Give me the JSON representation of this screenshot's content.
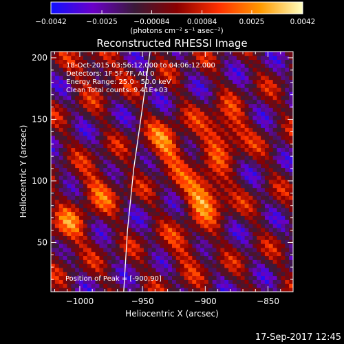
{
  "chart_data": {
    "type": "heatmap",
    "title": "Reconstructed RHESSI Image",
    "xlabel": "Heliocentric X (arcsec)",
    "ylabel": "Heliocentric Y (arcsec)",
    "xlim": [
      -1023,
      -830
    ],
    "ylim": [
      10,
      205
    ],
    "x_ticks": [
      -1000,
      -950,
      -900,
      -850
    ],
    "x_tick_labels": [
      "−1000",
      "−950",
      "−900",
      "−850"
    ],
    "y_ticks": [
      50,
      100,
      150,
      200
    ],
    "y_tick_labels": [
      "50",
      "100",
      "150",
      "200"
    ],
    "colorbar": {
      "min": -0.0042,
      "max": 0.0042,
      "ticks": [
        -0.0042,
        -0.0025,
        -0.00084,
        0.00084,
        0.0025,
        0.0042
      ],
      "tick_labels": [
        "−0.0042",
        "−0.0025",
        "−0.00084",
        "0.00084",
        "0.0025",
        "0.0042"
      ],
      "units_label": "(photons cm⁻² s⁻¹ asec⁻²)",
      "colors": [
        "#1010ff",
        "#6a00c8",
        "#3a1a38",
        "#8a0000",
        "#ff3000",
        "#ff9a00",
        "#ffffc0"
      ]
    },
    "info_lines": [
      "18-Oct-2015 03:56:12.000 to 04:06:12.000",
      "Detectors: 1F 5F 7F, Att 0",
      "Energy Range: 25.0 - 50.0 keV",
      "Clean   Total counts: 9.41E+03"
    ],
    "peak_label": "Position of Peak = [-900,90]",
    "peak_position": [
      -900,
      90
    ],
    "sources": [
      {
        "x": -900,
        "y": 90,
        "amplitude": 0.0042
      },
      {
        "x": -930,
        "y": 128,
        "amplitude": 0.003
      },
      {
        "x": -885,
        "y": 140,
        "amplitude": 0.0033
      },
      {
        "x": -1010,
        "y": 60,
        "amplitude": 0.0024
      },
      {
        "x": -985,
        "y": 95,
        "amplitude": 0.0022
      },
      {
        "x": -985,
        "y": 190,
        "amplitude": 0.0018
      },
      {
        "x": -915,
        "y": 45,
        "amplitude": 0.0016
      }
    ],
    "limb_curve": [
      [
        -965,
        10
      ],
      [
        -962,
        60
      ],
      [
        -957,
        110
      ],
      [
        -950,
        160
      ],
      [
        -944,
        205
      ]
    ],
    "grid": false
  },
  "footer": {
    "timestamp": "17-Sep-2017 12:45"
  }
}
